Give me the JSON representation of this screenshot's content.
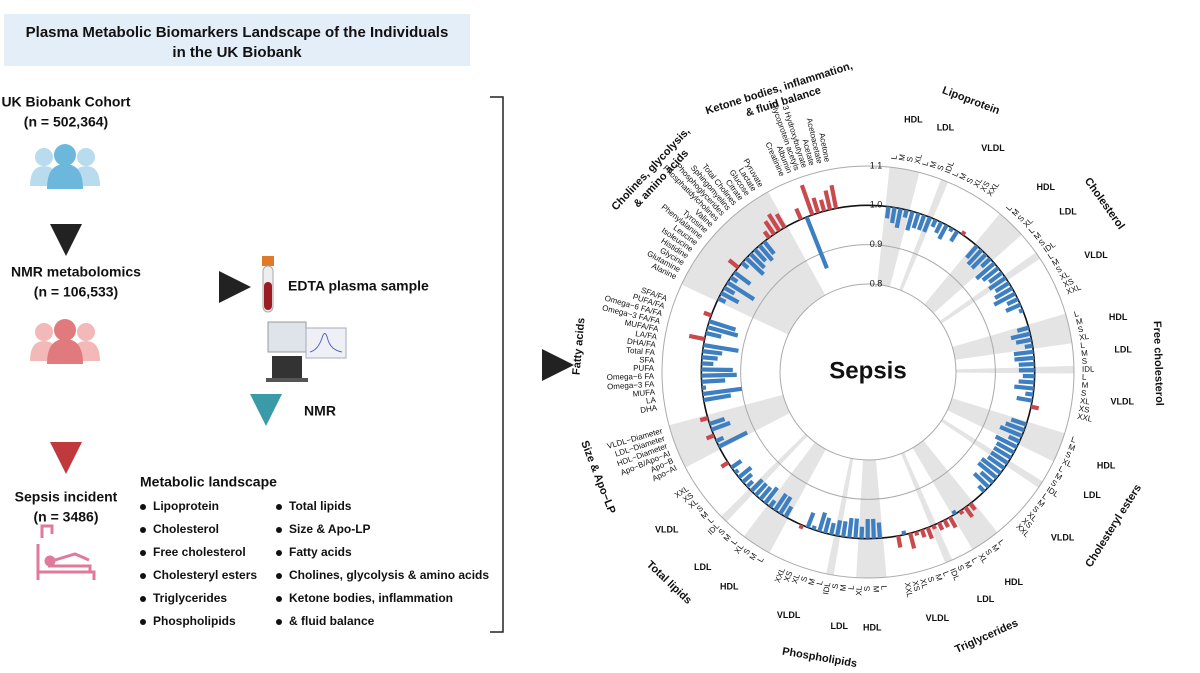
{
  "left": {
    "title": [
      "Plasma Metabolic Biomarkers Landscape of the Individuals",
      "in the UK Biobank"
    ],
    "cohort": {
      "label": "UK Biobank Cohort",
      "n": "(n = 502,364)"
    },
    "nmr": {
      "label": "NMR metabolomics",
      "n": "(n = 106,533)"
    },
    "sample": "EDTA plasma sample",
    "instrument": "NMR",
    "sepsis": {
      "label": "Sepsis incident",
      "n": "(n = 3486)"
    },
    "landscape": {
      "title": "Metabolic landscape",
      "items": [
        "Lipoprotein",
        "Cholesterol",
        "Free cholesterol",
        "Cholesteryl esters",
        "Triglycerides",
        "Phospholipids",
        "Total lipids",
        "Size & Apo-LP",
        "Fatty acids",
        "Cholines, glycolysis & amino acids",
        "Ketone bodies, inflammation",
        "& fluid balance"
      ]
    }
  },
  "chart_data": {
    "type": "circular-bar",
    "center_label": "Sepsis",
    "rlim": [
      0.8,
      1.1
    ],
    "rticks": [
      0.8,
      0.9,
      {
        "value": 1,
        "label": "1.0"
      },
      1.1
    ],
    "reference": 1,
    "colors": {
      "above": "#c94a4e",
      "below": "#3d7fc0"
    },
    "groups": [
      {
        "name": "Lipoprotein",
        "subgroups": [
          {
            "name": "HDL",
            "items": [
              "L",
              "M",
              "S",
              "XL"
            ],
            "values": [
              0.97,
              0.96,
              0.95,
              0.98
            ]
          },
          {
            "name": "LDL",
            "items": [
              "L",
              "M",
              "S"
            ],
            "values": [
              0.95,
              0.96,
              0.96
            ]
          },
          {
            "name": null,
            "items": [
              "IDL"
            ],
            "values": [
              0.96
            ]
          },
          {
            "name": "VLDL",
            "items": [
              "L",
              "M",
              "S",
              "XL",
              "XS",
              "XXL"
            ],
            "values": [
              0.98,
              0.97,
              0.96,
              0.99,
              0.97,
              1.01
            ]
          }
        ]
      },
      {
        "name": "Cholesterol",
        "subgroups": [
          {
            "name": "HDL",
            "items": [
              "L",
              "M",
              "S",
              "XL"
            ],
            "values": [
              0.96,
              0.95,
              0.95,
              0.97
            ]
          },
          {
            "name": "LDL",
            "items": [
              "L",
              "M",
              "S"
            ],
            "values": [
              0.94,
              0.95,
              0.96
            ]
          },
          {
            "name": null,
            "items": [
              "IDL"
            ],
            "values": [
              0.95
            ]
          },
          {
            "name": "VLDL",
            "items": [
              "L",
              "M",
              "S",
              "XL",
              "XS",
              "XXL"
            ],
            "values": [
              0.96,
              0.95,
              0.94,
              0.97,
              0.96,
              0.99
            ]
          }
        ]
      },
      {
        "name": "Free cholesterol",
        "subgroups": [
          {
            "name": "HDL",
            "items": [
              "L",
              "M",
              "S",
              "XL"
            ],
            "values": [
              0.97,
              0.95,
              0.96,
              0.98
            ]
          },
          {
            "name": "LDL",
            "items": [
              "L",
              "M",
              "S"
            ],
            "values": [
              0.95,
              0.95,
              0.96
            ]
          },
          {
            "name": null,
            "items": [
              "IDL"
            ],
            "values": [
              0.96
            ]
          },
          {
            "name": "VLDL",
            "items": [
              "L",
              "M",
              "S",
              "XL",
              "XS",
              "XXL"
            ],
            "values": [
              0.97,
              0.96,
              0.95,
              0.98,
              0.96,
              1.02
            ]
          }
        ]
      },
      {
        "name": "Cholesteryl esters",
        "subgroups": [
          {
            "name": "HDL",
            "items": [
              "L",
              "M",
              "S",
              "XL"
            ],
            "values": [
              0.96,
              0.95,
              0.94,
              0.97
            ]
          },
          {
            "name": "LDL",
            "items": [
              "L",
              "M",
              "S"
            ],
            "values": [
              0.94,
              0.95,
              0.95
            ]
          },
          {
            "name": null,
            "items": [
              "IDL"
            ],
            "values": [
              0.95
            ]
          },
          {
            "name": "VLDL",
            "items": [
              "L",
              "M",
              "S",
              "XL",
              "XS",
              "XXL"
            ],
            "values": [
              0.95,
              0.94,
              0.94,
              0.96,
              0.95,
              0.98
            ]
          }
        ]
      },
      {
        "name": "Triglycerides",
        "subgroups": [
          {
            "name": "HDL",
            "items": [
              "L",
              "M",
              "S",
              "XL"
            ],
            "values": [
              1.02,
              1.03,
              1.01,
              0.99
            ]
          },
          {
            "name": "LDL",
            "items": [
              "L",
              "M",
              "S"
            ],
            "values": [
              1.03,
              1.02,
              1.02
            ]
          },
          {
            "name": null,
            "items": [
              "IDL"
            ],
            "values": [
              1.01
            ]
          },
          {
            "name": "VLDL",
            "items": [
              "L",
              "M",
              "S",
              "XL",
              "XS",
              "XXL"
            ],
            "values": [
              1.03,
              1.02,
              1.01,
              1.04,
              0.99,
              1.03
            ]
          }
        ]
      },
      {
        "name": "Phospholipids",
        "subgroups": [
          {
            "name": "HDL",
            "items": [
              "L",
              "M",
              "S",
              "XL"
            ],
            "values": [
              0.96,
              0.95,
              0.95,
              0.97
            ]
          },
          {
            "name": "LDL",
            "items": [
              "L",
              "M",
              "S"
            ],
            "values": [
              0.95,
              0.95,
              0.96
            ]
          },
          {
            "name": null,
            "items": [
              "IDL"
            ],
            "values": [
              0.96
            ]
          },
          {
            "name": "VLDL",
            "items": [
              "L",
              "M",
              "S",
              "XL",
              "XS",
              "XXL"
            ],
            "values": [
              0.97,
              0.96,
              0.95,
              0.99,
              0.96,
              1.01
            ]
          }
        ]
      },
      {
        "name": "Total lipids",
        "subgroups": [
          {
            "name": "HDL",
            "items": [
              "L",
              "M",
              "S",
              "XL"
            ],
            "values": [
              0.97,
              0.95,
              0.95,
              0.98
            ]
          },
          {
            "name": "LDL",
            "items": [
              "L",
              "M",
              "S"
            ],
            "values": [
              0.95,
              0.96,
              0.96
            ]
          },
          {
            "name": null,
            "items": [
              "IDL"
            ],
            "values": [
              0.96
            ]
          },
          {
            "name": "VLDL",
            "items": [
              "L",
              "M",
              "S",
              "XL",
              "XS",
              "XXL"
            ],
            "values": [
              0.98,
              0.97,
              0.96,
              0.99,
              0.97,
              1.02
            ]
          }
        ]
      },
      {
        "name": "Size & Apo−LP",
        "items": [
          "Apo−AI",
          "Apo−B",
          "Apo−B/Apo−AI",
          "HDL−Diameter",
          "LDL−Diameter",
          "VLDL−Diameter"
        ],
        "values": [
          0.92,
          0.98,
          1.02,
          0.95,
          0.96,
          1.02
        ]
      },
      {
        "name": "Fatty acids",
        "items": [
          "DHA",
          "LA",
          "MUFA",
          "Omega−3 FA",
          "Omega−6 FA",
          "PUFA",
          "SFA",
          "Total FA",
          "DHA/FA",
          "LA/FA",
          "MUFA/FA",
          "Omega−3 FA/FA",
          "Omega−6 FA/FA",
          "PUFA/FA",
          "SFA/FA"
        ],
        "values": [
          0.93,
          0.9,
          0.99,
          0.94,
          0.91,
          0.92,
          0.97,
          0.96,
          0.95,
          0.91,
          1.04,
          0.96,
          0.92,
          0.93,
          1.02
        ]
      },
      {
        "name": [
          "Cholines, glycolysis,",
          "& amino acids"
        ],
        "items": [
          "Alanine",
          "Glutamine",
          "Glycine",
          "Histidine",
          "Isoleucine",
          "Leucine",
          "Phenylalanine",
          "Tyrosine",
          "Valine",
          "Phosphatidylcholines",
          "Phosphoglycerides",
          "Sphingomyelins",
          "Total Cholines",
          "Citrate",
          "Glucose",
          "Lactate",
          "Pyruvate"
        ],
        "values": [
          0.98,
          0.95,
          0.97,
          0.92,
          0.98,
          0.95,
          1.03,
          0.98,
          0.94,
          0.95,
          0.96,
          0.95,
          0.96,
          1.02,
          1.04,
          1.05,
          1.04
        ]
      },
      {
        "name": [
          "Ketone bodies, inflammation,",
          "& fluid balance"
        ],
        "items": [
          "Creatinine",
          "Albumin",
          "Glycoprotein acetyls",
          "3 Hydroxybutyrate",
          "Acetate",
          "Acetoacetate",
          "Acetone"
        ],
        "values": [
          1.03,
          0.86,
          1.08,
          1.04,
          1.03,
          1.05,
          1.06
        ]
      }
    ]
  }
}
